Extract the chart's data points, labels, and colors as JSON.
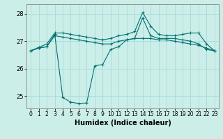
{
  "xlabel": "Humidex (Indice chaleur)",
  "background_color": "#cceee8",
  "grid_color": "#aadddd",
  "line_color": "#007070",
  "xlim_min": -0.5,
  "xlim_max": 23.5,
  "ylim_min": 24.55,
  "ylim_max": 28.35,
  "yticks": [
    25,
    26,
    27,
    28
  ],
  "xticks": [
    0,
    1,
    2,
    3,
    4,
    5,
    6,
    7,
    8,
    9,
    10,
    11,
    12,
    13,
    14,
    15,
    16,
    17,
    18,
    19,
    20,
    21,
    22,
    23
  ],
  "series1_x": [
    0,
    1,
    2,
    3,
    4,
    5,
    6,
    7,
    8,
    9,
    10,
    11,
    12,
    13,
    14,
    15,
    16,
    17,
    18,
    19,
    20,
    21,
    22,
    23
  ],
  "series1_y": [
    26.65,
    26.75,
    26.8,
    27.2,
    27.15,
    27.1,
    27.05,
    27.0,
    26.95,
    26.9,
    26.9,
    27.0,
    27.05,
    27.1,
    27.1,
    27.1,
    27.05,
    27.05,
    27.0,
    26.95,
    26.9,
    26.85,
    26.75,
    26.65
  ],
  "series2_x": [
    0,
    1,
    2,
    3,
    4,
    5,
    6,
    7,
    8,
    9,
    10,
    11,
    12,
    13,
    14,
    15,
    16,
    17,
    18,
    19,
    20,
    21,
    22,
    23
  ],
  "series2_y": [
    26.65,
    26.75,
    26.8,
    27.25,
    24.95,
    24.78,
    24.73,
    24.75,
    26.1,
    26.15,
    26.7,
    26.8,
    27.05,
    27.1,
    27.85,
    27.2,
    27.1,
    27.1,
    27.1,
    27.05,
    27.0,
    26.9,
    26.7,
    26.65
  ],
  "series3_x": [
    0,
    1,
    2,
    3,
    4,
    5,
    6,
    7,
    8,
    9,
    10,
    11,
    12,
    13,
    14,
    15,
    16,
    17,
    18,
    19,
    20,
    21,
    22,
    23
  ],
  "series3_y": [
    26.65,
    26.78,
    26.9,
    27.3,
    27.3,
    27.25,
    27.2,
    27.15,
    27.1,
    27.05,
    27.1,
    27.2,
    27.25,
    27.35,
    28.05,
    27.55,
    27.25,
    27.2,
    27.2,
    27.25,
    27.3,
    27.3,
    26.9,
    26.65
  ]
}
